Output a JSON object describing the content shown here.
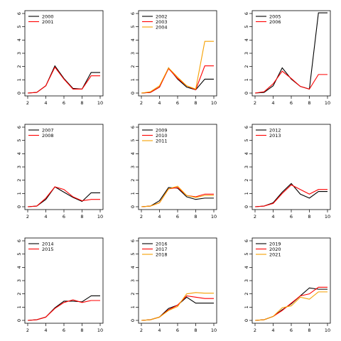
{
  "chart_data": [
    {
      "type": "line",
      "x": [
        2,
        3,
        4,
        5,
        6,
        7,
        8,
        9,
        10
      ],
      "xlim": [
        2,
        10
      ],
      "ylim": [
        0,
        6
      ],
      "xticks": [
        2,
        4,
        6,
        8,
        10
      ],
      "yticks": [
        0,
        1,
        2,
        3,
        4,
        5,
        6
      ],
      "legend": "top-left",
      "series": [
        {
          "name": "2000",
          "color": "#000000",
          "values": [
            0.0,
            0.05,
            0.55,
            2.05,
            1.1,
            0.35,
            0.3,
            1.55,
            1.55
          ]
        },
        {
          "name": "2001",
          "color": "#ff0000",
          "values": [
            0.0,
            0.05,
            0.55,
            1.95,
            1.05,
            0.3,
            0.3,
            1.3,
            1.3
          ]
        }
      ]
    },
    {
      "type": "line",
      "x": [
        2,
        3,
        4,
        5,
        6,
        7,
        8,
        9,
        10
      ],
      "xlim": [
        2,
        10
      ],
      "ylim": [
        0,
        6
      ],
      "xticks": [
        2,
        4,
        6,
        8,
        10
      ],
      "yticks": [
        0,
        1,
        2,
        3,
        4,
        5,
        6
      ],
      "legend": "top-left",
      "series": [
        {
          "name": "2002",
          "color": "#000000",
          "values": [
            0.0,
            0.05,
            0.45,
            1.9,
            1.05,
            0.45,
            0.25,
            1.05,
            1.05
          ]
        },
        {
          "name": "2003",
          "color": "#ff0000",
          "values": [
            0.0,
            0.05,
            0.45,
            1.85,
            1.1,
            0.55,
            0.25,
            2.05,
            2.05
          ]
        },
        {
          "name": "2004",
          "color": "#f5a000",
          "values": [
            0.0,
            0.1,
            0.55,
            1.9,
            1.2,
            0.55,
            0.3,
            3.9,
            3.9
          ]
        }
      ]
    },
    {
      "type": "line",
      "x": [
        2,
        3,
        4,
        5,
        6,
        7,
        8,
        9,
        10
      ],
      "xlim": [
        2,
        10
      ],
      "ylim": [
        0,
        6
      ],
      "xticks": [
        2,
        4,
        6,
        8,
        10
      ],
      "yticks": [
        0,
        1,
        2,
        3,
        4,
        5,
        6
      ],
      "legend": "top-left",
      "series": [
        {
          "name": "2005",
          "color": "#000000",
          "values": [
            0.0,
            0.05,
            0.55,
            1.9,
            1.05,
            0.5,
            0.3,
            6.05,
            6.05
          ]
        },
        {
          "name": "2006",
          "color": "#ff0000",
          "values": [
            0.0,
            0.1,
            0.7,
            1.65,
            1.1,
            0.5,
            0.3,
            1.4,
            1.4
          ]
        }
      ]
    },
    {
      "type": "line",
      "x": [
        2,
        3,
        4,
        5,
        6,
        7,
        8,
        9,
        10
      ],
      "xlim": [
        2,
        10
      ],
      "ylim": [
        0,
        6
      ],
      "xticks": [
        2,
        4,
        6,
        8,
        10
      ],
      "yticks": [
        0,
        1,
        2,
        3,
        4,
        5,
        6
      ],
      "legend": "top-left",
      "series": [
        {
          "name": "2007",
          "color": "#000000",
          "values": [
            0.0,
            0.05,
            0.55,
            1.5,
            1.1,
            0.7,
            0.4,
            1.05,
            1.05
          ]
        },
        {
          "name": "2008",
          "color": "#ff0000",
          "values": [
            0.0,
            0.05,
            0.65,
            1.5,
            1.3,
            0.75,
            0.45,
            0.55,
            0.55
          ]
        }
      ]
    },
    {
      "type": "line",
      "x": [
        2,
        3,
        4,
        5,
        6,
        7,
        8,
        9,
        10
      ],
      "xlim": [
        2,
        10
      ],
      "ylim": [
        0,
        6
      ],
      "xticks": [
        2,
        4,
        6,
        8,
        10
      ],
      "yticks": [
        0,
        1,
        2,
        3,
        4,
        5,
        6
      ],
      "legend": "top-left",
      "series": [
        {
          "name": "2009",
          "color": "#000000",
          "values": [
            0.0,
            0.05,
            0.45,
            1.45,
            1.4,
            0.75,
            0.55,
            0.65,
            0.65
          ]
        },
        {
          "name": "2010",
          "color": "#ff0000",
          "values": [
            0.0,
            0.05,
            0.3,
            1.35,
            1.45,
            0.85,
            0.75,
            0.95,
            0.95
          ]
        },
        {
          "name": "2011",
          "color": "#f5a000",
          "values": [
            0.0,
            0.05,
            0.3,
            1.35,
            1.55,
            0.85,
            0.7,
            0.85,
            0.85
          ]
        }
      ]
    },
    {
      "type": "line",
      "x": [
        2,
        3,
        4,
        5,
        6,
        7,
        8,
        9,
        10
      ],
      "xlim": [
        2,
        10
      ],
      "ylim": [
        0,
        6
      ],
      "xticks": [
        2,
        4,
        6,
        8,
        10
      ],
      "yticks": [
        0,
        1,
        2,
        3,
        4,
        5,
        6
      ],
      "legend": "top-left",
      "series": [
        {
          "name": "2012",
          "color": "#000000",
          "values": [
            0.0,
            0.05,
            0.3,
            1.1,
            1.75,
            0.95,
            0.65,
            1.15,
            1.15
          ]
        },
        {
          "name": "2013",
          "color": "#ff0000",
          "values": [
            0.0,
            0.05,
            0.25,
            1.0,
            1.65,
            1.3,
            0.95,
            1.3,
            1.3
          ]
        }
      ]
    },
    {
      "type": "line",
      "x": [
        2,
        3,
        4,
        5,
        6,
        7,
        8,
        9,
        10
      ],
      "xlim": [
        2,
        10
      ],
      "ylim": [
        0,
        6
      ],
      "xticks": [
        2,
        4,
        6,
        8,
        10
      ],
      "yticks": [
        0,
        1,
        2,
        3,
        4,
        5,
        6
      ],
      "legend": "top-left",
      "series": [
        {
          "name": "2014",
          "color": "#000000",
          "values": [
            0.0,
            0.05,
            0.25,
            0.95,
            1.45,
            1.45,
            1.4,
            1.85,
            1.85
          ]
        },
        {
          "name": "2015",
          "color": "#ff0000",
          "values": [
            0.0,
            0.05,
            0.25,
            0.9,
            1.35,
            1.55,
            1.35,
            1.5,
            1.5
          ]
        }
      ]
    },
    {
      "type": "line",
      "x": [
        2,
        3,
        4,
        5,
        6,
        7,
        8,
        9,
        10
      ],
      "xlim": [
        2,
        10
      ],
      "ylim": [
        0,
        6
      ],
      "xticks": [
        2,
        4,
        6,
        8,
        10
      ],
      "yticks": [
        0,
        1,
        2,
        3,
        4,
        5,
        6
      ],
      "legend": "top-left",
      "series": [
        {
          "name": "2016",
          "color": "#000000",
          "values": [
            0.0,
            0.05,
            0.25,
            0.9,
            1.15,
            1.75,
            1.3,
            1.3,
            1.3
          ]
        },
        {
          "name": "2017",
          "color": "#ff0000",
          "values": [
            0.0,
            0.05,
            0.25,
            0.8,
            1.15,
            1.85,
            1.75,
            1.65,
            1.65
          ]
        },
        {
          "name": "2018",
          "color": "#f5a000",
          "values": [
            0.0,
            0.05,
            0.25,
            0.75,
            1.05,
            2.0,
            2.1,
            2.05,
            2.05
          ]
        }
      ]
    },
    {
      "type": "line",
      "x": [
        2,
        3,
        4,
        5,
        6,
        7,
        8,
        9,
        10
      ],
      "xlim": [
        2,
        10
      ],
      "ylim": [
        0,
        6
      ],
      "xticks": [
        2,
        4,
        6,
        8,
        10
      ],
      "yticks": [
        0,
        1,
        2,
        3,
        4,
        5,
        6
      ],
      "legend": "top-left",
      "series": [
        {
          "name": "2019",
          "color": "#000000",
          "values": [
            0.0,
            0.05,
            0.3,
            0.8,
            1.25,
            1.85,
            2.45,
            2.35,
            2.35
          ]
        },
        {
          "name": "2020",
          "color": "#ff0000",
          "values": [
            0.0,
            0.05,
            0.3,
            0.75,
            1.3,
            1.85,
            2.0,
            2.5,
            2.5
          ]
        },
        {
          "name": "2021",
          "color": "#f5a000",
          "values": [
            0.0,
            0.05,
            0.3,
            0.95,
            1.1,
            1.75,
            1.6,
            2.15,
            2.15
          ]
        }
      ]
    }
  ]
}
